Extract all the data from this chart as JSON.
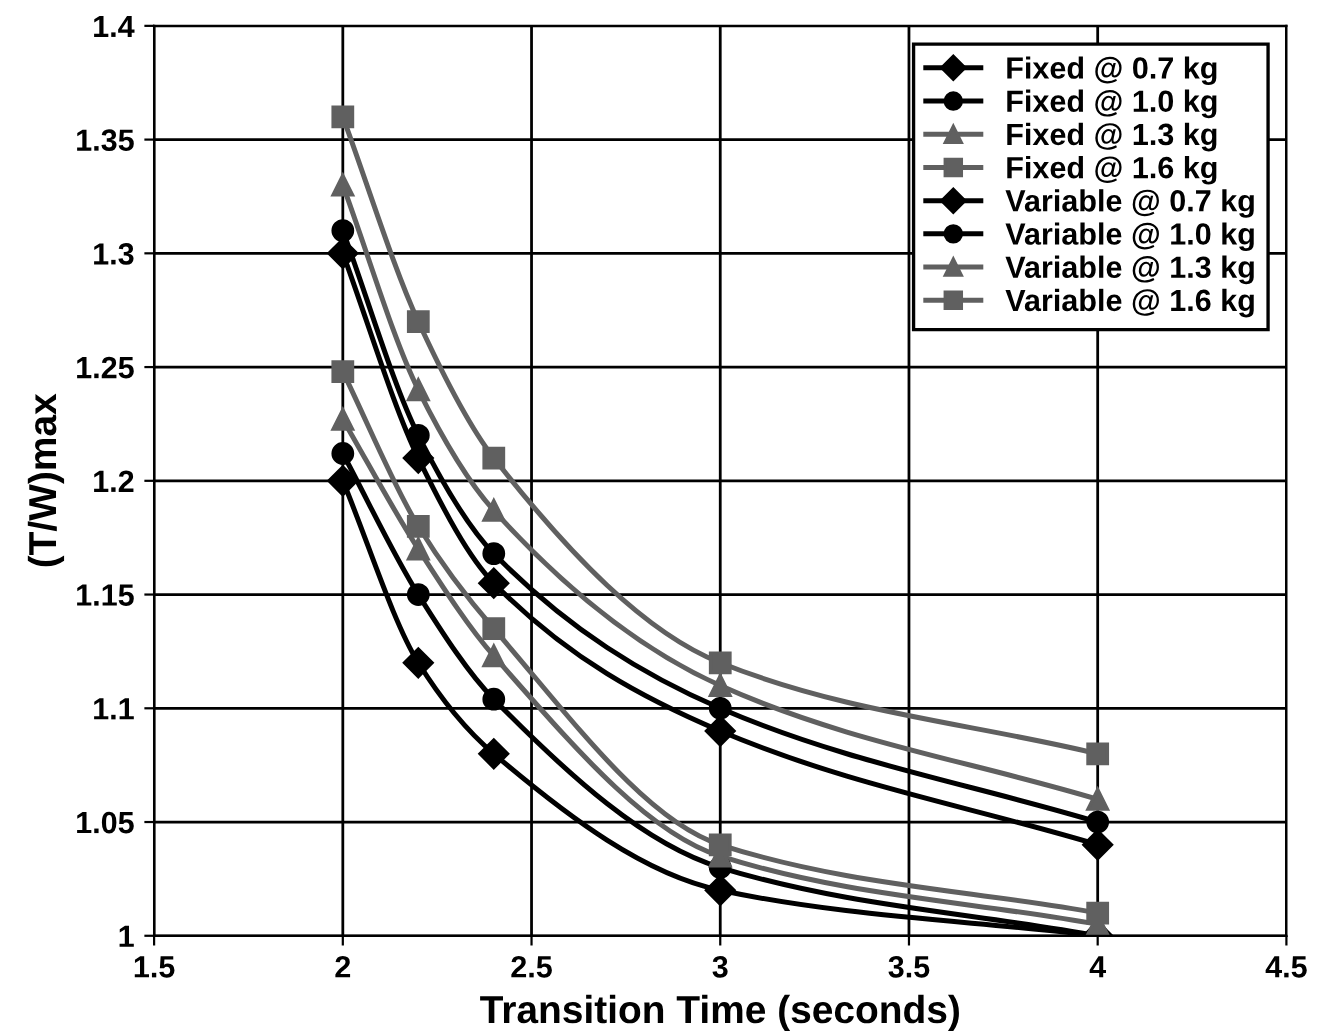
{
  "chart_data": {
    "type": "line",
    "xlabel": "Transition Time (seconds)",
    "ylabel": "(T/W)max",
    "x": [
      2,
      2.2,
      2.4,
      3,
      4
    ],
    "xlim": [
      1.5,
      4.5
    ],
    "xticks": [
      1.5,
      2,
      2.5,
      3,
      3.5,
      4,
      4.5
    ],
    "ylim": [
      1,
      1.4
    ],
    "yticks": [
      1,
      1.05,
      1.1,
      1.15,
      1.2,
      1.25,
      1.3,
      1.35,
      1.4
    ],
    "grid": true,
    "legend": "top right",
    "line_style": "solid",
    "series": [
      {
        "name": "Fixed @ 0.7 kg",
        "color": "#000000",
        "marker": "diamond",
        "values": [
          1.3,
          1.21,
          1.155,
          1.09,
          1.04
        ]
      },
      {
        "name": "Fixed @ 1.0 kg",
        "color": "#000000",
        "marker": "circle",
        "values": [
          1.31,
          1.22,
          1.168,
          1.1,
          1.05
        ]
      },
      {
        "name": "Fixed @ 1.3 kg",
        "color": "#606060",
        "marker": "triangle",
        "values": [
          1.33,
          1.24,
          1.187,
          1.11,
          1.06
        ]
      },
      {
        "name": "Fixed @ 1.6 kg",
        "color": "#606060",
        "marker": "square",
        "values": [
          1.36,
          1.27,
          1.21,
          1.12,
          1.08
        ]
      },
      {
        "name": "Variable @ 0.7 kg",
        "color": "#000000",
        "marker": "diamond",
        "values": [
          1.2,
          1.12,
          1.08,
          1.02,
          1.0
        ]
      },
      {
        "name": "Variable @ 1.0 kg",
        "color": "#000000",
        "marker": "circle",
        "values": [
          1.212,
          1.15,
          1.104,
          1.03,
          1.0
        ]
      },
      {
        "name": "Variable @ 1.3 kg",
        "color": "#606060",
        "marker": "triangle",
        "values": [
          1.227,
          1.17,
          1.123,
          1.035,
          1.005
        ]
      },
      {
        "name": "Variable @ 1.6 kg",
        "color": "#606060",
        "marker": "square",
        "values": [
          1.248,
          1.18,
          1.135,
          1.04,
          1.01
        ]
      }
    ]
  }
}
